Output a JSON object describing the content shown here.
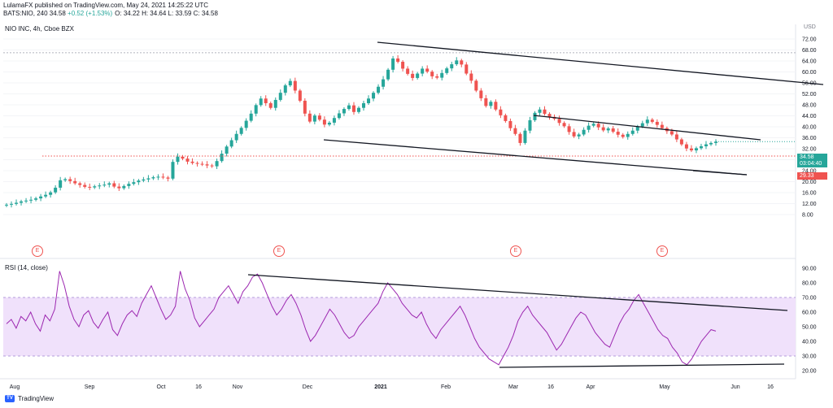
{
  "header": {
    "publisher_line": "LulamaFX published on TradingView.com, May 24, 2021 14:25:22 UTC",
    "symbol_line_prefix": "BATS:NIO, 240  34.58  ",
    "change": "+0.52 (+1.53%)",
    "ohlc": "O: 34.22  H: 34.64  L: 33.59  C: 34.58"
  },
  "main_legend": "NIO INC, 4h, Cboe BZX",
  "rsi_legend": "RSI (14, close)",
  "currency": "USD",
  "price_badge": {
    "price": "34.58",
    "countdown": "03:04:40",
    "color": "#26a69a"
  },
  "level_badge": {
    "value": "29.33",
    "color": "#ef5350"
  },
  "earnings_marker": "E",
  "branding": "TradingView",
  "chart_data": [
    {
      "type": "candlestick",
      "title": "NIO INC, 4h, Cboe BZX",
      "ylim": [
        8,
        72
      ],
      "y_ticks": [
        "72.00",
        "68.00",
        "64.00",
        "60.00",
        "56.00",
        "52.00",
        "48.00",
        "44.00",
        "40.00",
        "36.00",
        "32.00",
        "28.00",
        "24.00",
        "20.00",
        "16.00",
        "12.00",
        "8.00"
      ],
      "last_close": 34.58,
      "horizontal_level": 29.33,
      "up_color": "#26a69a",
      "down_color": "#ef5350",
      "x_ticks": [
        "Aug",
        "Sep",
        "Oct",
        "16",
        "Nov",
        "Dec",
        "2021",
        "Feb",
        "Mar",
        "16",
        "Apr",
        "May",
        "Jun",
        "16"
      ],
      "series": [
        {
          "values": [
            11.6,
            11.9,
            12.3,
            12.8,
            13.1,
            13.4,
            13.9,
            14.6,
            15.2,
            16.1,
            17.8,
            20.5,
            20.9,
            20.2,
            19.4,
            18.8,
            18.1,
            17.9,
            18.3,
            18.6,
            18.9,
            19.4,
            18.2,
            17.6,
            18.4,
            19.2,
            19.8,
            20.4,
            20.8,
            21.2,
            21.6,
            21.8,
            21.5,
            21.1,
            27.2,
            29.1,
            28.4,
            27.3,
            26.8,
            26.5,
            26.3,
            25.9,
            25.6,
            27.5,
            30.2,
            32.8,
            35.1,
            37.4,
            39.6,
            42.2,
            44.8,
            47.9,
            50.3,
            48.6,
            46.9,
            49.8,
            52.4,
            55.1,
            56.7,
            53.2,
            49.5,
            44.8,
            41.9,
            44.1,
            42.6,
            40.8,
            41.5,
            43.2,
            44.9,
            46.5,
            47.8,
            45.4,
            46.9,
            48.6,
            50.3,
            52.4,
            54.6,
            57.3,
            60.8,
            64.9,
            63.7,
            61.2,
            59.3,
            57.8,
            59.4,
            61.2,
            60.1,
            58.4,
            57.9,
            59.6,
            61.3,
            62.8,
            64.2,
            62.7,
            59.4,
            56.8,
            53.2,
            50.4,
            47.6,
            49.1,
            46.3,
            44.2,
            42.1,
            39.5,
            37.4,
            34.1,
            38.6,
            42.4,
            45.1,
            46.3,
            44.7,
            43.6,
            42.9,
            41.4,
            40.2,
            38.1,
            36.5,
            37.2,
            38.9,
            40.4,
            41.1,
            39.8,
            38.7,
            39.4,
            38.2,
            37.1,
            36.3,
            37.4,
            38.6,
            40.1,
            41.3,
            42.6,
            41.8,
            40.7,
            39.5,
            38.4,
            37.2,
            35.4,
            33.6,
            32.1,
            31.4,
            32.2,
            32.9,
            33.6,
            34.1,
            34.58
          ]
        }
      ]
    },
    {
      "type": "line",
      "title": "RSI (14, close)",
      "ylim": [
        15,
        95
      ],
      "y_ticks": [
        "90.00",
        "80.00",
        "70.00",
        "60.00",
        "50.00",
        "40.00",
        "30.00",
        "20.00"
      ],
      "band": [
        30,
        70
      ],
      "line_color": "#9c27b0",
      "series": [
        {
          "values": [
            52,
            55,
            49,
            57,
            54,
            60,
            52,
            47,
            58,
            54,
            62,
            88,
            78,
            64,
            55,
            50,
            58,
            61,
            53,
            49,
            55,
            60,
            48,
            44,
            52,
            58,
            61,
            57,
            66,
            72,
            78,
            70,
            62,
            55,
            58,
            64,
            88,
            76,
            68,
            56,
            50,
            54,
            58,
            62,
            70,
            74,
            78,
            72,
            66,
            74,
            78,
            84,
            86,
            80,
            72,
            64,
            58,
            62,
            68,
            72,
            66,
            58,
            48,
            40,
            44,
            50,
            56,
            62,
            58,
            52,
            46,
            42,
            44,
            50,
            54,
            58,
            62,
            66,
            74,
            80,
            76,
            72,
            66,
            62,
            58,
            56,
            60,
            52,
            46,
            42,
            48,
            52,
            56,
            60,
            64,
            58,
            50,
            42,
            36,
            32,
            28,
            26,
            24,
            30,
            36,
            44,
            54,
            60,
            64,
            58,
            54,
            50,
            46,
            40,
            34,
            38,
            44,
            50,
            56,
            60,
            58,
            52,
            46,
            42,
            38,
            36,
            44,
            52,
            58,
            62,
            68,
            72,
            66,
            60,
            54,
            48,
            44,
            42,
            36,
            32,
            26,
            24,
            28,
            34,
            40,
            44,
            48,
            47
          ]
        }
      ]
    }
  ]
}
